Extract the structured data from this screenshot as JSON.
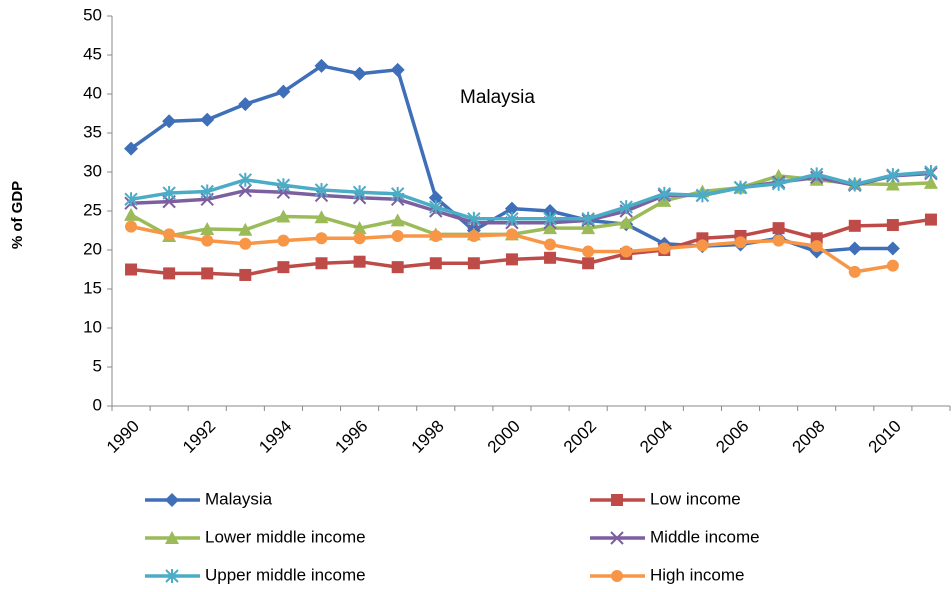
{
  "chart_data": {
    "type": "line",
    "annotation": "Malaysia",
    "y_label": "% of GDP",
    "categories": [
      "1990",
      null,
      "1992",
      null,
      "1994",
      null,
      "1996",
      null,
      "1998",
      null,
      "2000",
      null,
      "2002",
      null,
      "2004",
      null,
      "2006",
      null,
      "2008",
      null,
      "2010",
      null
    ],
    "ylim": [
      0,
      50
    ],
    "yticks": [
      0,
      5,
      10,
      15,
      20,
      25,
      30,
      35,
      40,
      45,
      50
    ],
    "series": [
      {
        "name": "Malaysia",
        "color": "#3e6fb8",
        "marker": "diamond",
        "values": [
          33,
          36.5,
          36.7,
          38.7,
          40.3,
          43.6,
          42.6,
          43.1,
          26.7,
          22.5,
          25.3,
          25,
          23.8,
          23.3,
          20.8,
          20.5,
          20.7,
          21.5,
          19.8,
          20.2,
          20.2,
          null
        ]
      },
      {
        "name": "Low income",
        "color": "#be4b48",
        "marker": "square",
        "values": [
          17.5,
          17,
          17,
          16.8,
          17.8,
          18.3,
          18.5,
          17.8,
          18.3,
          18.3,
          18.8,
          19,
          18.3,
          19.5,
          20,
          21.5,
          21.8,
          22.8,
          21.5,
          23.1,
          23.2,
          23.9
        ]
      },
      {
        "name": "Lower middle income",
        "color": "#9bbb59",
        "marker": "triangle",
        "values": [
          24.5,
          21.8,
          22.7,
          22.6,
          24.3,
          24.2,
          22.8,
          23.8,
          22,
          22,
          22,
          22.8,
          22.8,
          23.5,
          26.3,
          27.5,
          28,
          29.5,
          29,
          28.5,
          28.4,
          28.6
        ]
      },
      {
        "name": "Middle income",
        "color": "#7d5fa0",
        "marker": "x",
        "values": [
          26,
          26.2,
          26.5,
          27.6,
          27.4,
          27,
          26.7,
          26.5,
          25,
          23.5,
          23.5,
          23.5,
          23.8,
          25,
          27,
          27,
          28,
          28.7,
          29.3,
          28.3,
          29.5,
          29.8
        ]
      },
      {
        "name": "Upper middle income",
        "color": "#4bacc6",
        "marker": "star",
        "values": [
          26.5,
          27.3,
          27.5,
          29,
          28.3,
          27.7,
          27.4,
          27.2,
          25.5,
          24,
          24,
          24,
          24,
          25.5,
          27.2,
          27,
          28,
          28.5,
          29.7,
          28.4,
          29.6,
          30
        ]
      },
      {
        "name": "High income",
        "color": "#f79646",
        "marker": "circle",
        "values": [
          23,
          22,
          21.2,
          20.8,
          21.2,
          21.5,
          21.5,
          21.8,
          21.8,
          21.8,
          22,
          20.7,
          19.8,
          19.8,
          20.2,
          20.6,
          21,
          21.2,
          20.5,
          17.2,
          18,
          null
        ]
      }
    ]
  }
}
